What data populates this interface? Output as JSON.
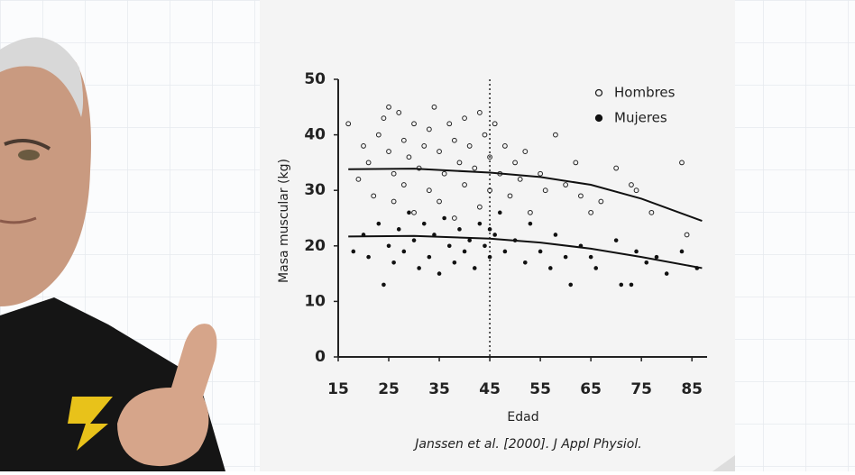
{
  "chart_data": {
    "type": "scatter",
    "xlabel": "Edad",
    "ylabel": "Masa muscular (kg)",
    "source": "Janssen et al. [2000]. J Appl Physiol.",
    "xlim": [
      15,
      88
    ],
    "ylim": [
      0,
      50
    ],
    "xticks": [
      15,
      25,
      35,
      45,
      55,
      65,
      75,
      85
    ],
    "yticks": [
      0,
      10,
      20,
      30,
      40,
      50
    ],
    "vline": 45,
    "legend": "top-right",
    "series": [
      {
        "name": "Hombres",
        "marker": "open",
        "color": "#222222",
        "x": [
          17,
          19,
          20,
          21,
          22,
          23,
          24,
          25,
          25,
          26,
          26,
          27,
          28,
          28,
          29,
          30,
          30,
          31,
          32,
          33,
          33,
          34,
          35,
          35,
          36,
          37,
          38,
          38,
          39,
          40,
          40,
          41,
          42,
          43,
          43,
          44,
          45,
          45,
          46,
          47,
          48,
          49,
          50,
          51,
          52,
          53,
          55,
          56,
          58,
          60,
          62,
          63,
          65,
          67,
          70,
          73,
          74,
          77,
          83,
          84
        ],
        "values": [
          42,
          32,
          38,
          35,
          29,
          40,
          43,
          45,
          37,
          33,
          28,
          44,
          39,
          31,
          36,
          42,
          26,
          34,
          38,
          30,
          41,
          45,
          37,
          28,
          33,
          42,
          39,
          25,
          35,
          43,
          31,
          38,
          34,
          44,
          27,
          40,
          36,
          30,
          42,
          33,
          38,
          29,
          35,
          32,
          37,
          26,
          33,
          30,
          40,
          31,
          35,
          29,
          26,
          28,
          34,
          31,
          30,
          26,
          35,
          22
        ]
      },
      {
        "name": "Mujeres",
        "marker": "filled",
        "color": "#111111",
        "x": [
          18,
          20,
          21,
          23,
          24,
          25,
          26,
          27,
          28,
          29,
          30,
          31,
          32,
          33,
          34,
          35,
          36,
          37,
          38,
          39,
          40,
          41,
          42,
          43,
          44,
          45,
          45,
          46,
          47,
          48,
          50,
          52,
          53,
          55,
          57,
          58,
          60,
          61,
          63,
          65,
          66,
          70,
          71,
          73,
          74,
          76,
          78,
          80,
          83,
          86
        ],
        "values": [
          19,
          22,
          18,
          24,
          13,
          20,
          17,
          23,
          19,
          26,
          21,
          16,
          24,
          18,
          22,
          15,
          25,
          20,
          17,
          23,
          19,
          21,
          16,
          24,
          20,
          18,
          23,
          22,
          26,
          19,
          21,
          17,
          24,
          19,
          16,
          22,
          18,
          13,
          20,
          18,
          16,
          21,
          13,
          13,
          19,
          17,
          18,
          15,
          19,
          16
        ]
      }
    ],
    "trend_lines": [
      {
        "x": [
          17,
          30,
          45,
          55,
          65,
          75,
          87
        ],
        "values": [
          33.8,
          33.9,
          33.2,
          32.4,
          31,
          28.5,
          24.5
        ]
      },
      {
        "x": [
          17,
          30,
          45,
          55,
          65,
          75,
          87
        ],
        "values": [
          21.7,
          21.8,
          21.3,
          20.6,
          19.5,
          18,
          16
        ]
      }
    ]
  }
}
